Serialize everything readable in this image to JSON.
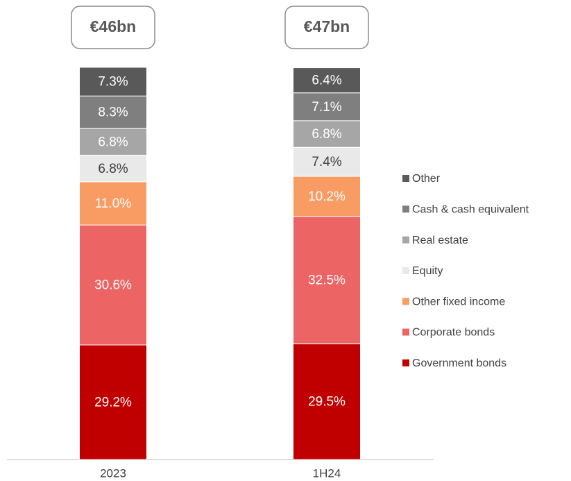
{
  "chart_data": {
    "type": "stacked_bar",
    "categories": [
      "2023",
      "1H24"
    ],
    "annotations": [
      "€46bn",
      "€47bn"
    ],
    "series": [
      {
        "name": "Government bonds",
        "color": "#c00000",
        "values": [
          29.2,
          29.5
        ],
        "value_labels": [
          "29.2%",
          "29.5%"
        ]
      },
      {
        "name": "Corporate bonds",
        "color": "#ec6464",
        "values": [
          30.6,
          32.5
        ],
        "value_labels": [
          "30.6%",
          "32.5%"
        ]
      },
      {
        "name": "Other fixed income",
        "color": "#f89c64",
        "values": [
          11.0,
          10.2
        ],
        "value_labels": [
          "11.0%",
          "10.2%"
        ]
      },
      {
        "name": "Equity",
        "color": "#e9e9e9",
        "values": [
          6.8,
          7.4
        ],
        "value_labels": [
          "6.8%",
          "7.4%"
        ]
      },
      {
        "name": "Real estate",
        "color": "#a6a6a6",
        "values": [
          6.8,
          6.8
        ],
        "value_labels": [
          "6.8%",
          "6.8%"
        ]
      },
      {
        "name": "Cash & cash equivalent",
        "color": "#7f7f7f",
        "values": [
          8.3,
          7.1
        ],
        "value_labels": [
          "8.3%",
          "7.1%"
        ]
      },
      {
        "name": "Other",
        "color": "#595959",
        "values": [
          7.3,
          6.4
        ],
        "value_labels": [
          "7.3%",
          "6.4%"
        ]
      }
    ]
  }
}
